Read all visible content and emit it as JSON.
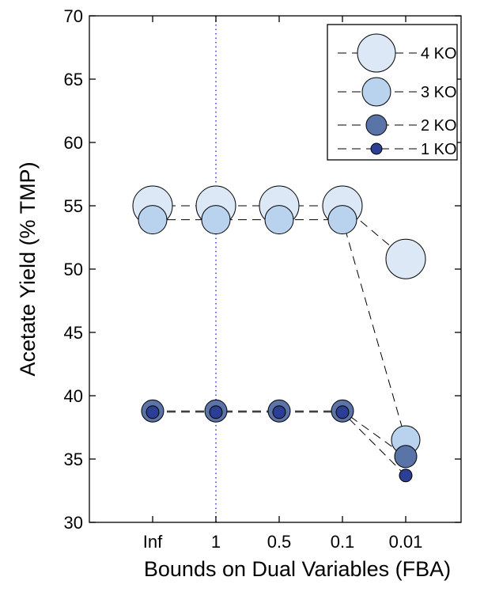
{
  "chart_data": {
    "type": "scatter",
    "xlabel": "Bounds on Dual Variables (FBA)",
    "ylabel": "Acetate Yield (% TMP)",
    "categories": [
      "Inf",
      "1",
      "0.5",
      "0.1",
      "0.01"
    ],
    "ylim": [
      30,
      70
    ],
    "yticks": [
      30,
      35,
      40,
      45,
      50,
      55,
      60,
      65,
      70
    ],
    "reference_line_category": "1",
    "legend_position": "top-right",
    "series": [
      {
        "name": "4 KO",
        "values": [
          55.0,
          55.0,
          55.0,
          55.0,
          50.8
        ],
        "color": "#dde8f6"
      },
      {
        "name": "3 KO",
        "values": [
          53.9,
          53.9,
          53.9,
          53.9,
          36.5
        ],
        "color": "#b9d3ee"
      },
      {
        "name": "2 KO",
        "values": [
          38.8,
          38.8,
          38.8,
          38.8,
          35.2
        ],
        "color": "#5a74a8"
      },
      {
        "name": "1 KO",
        "values": [
          38.7,
          38.7,
          38.7,
          38.7,
          33.7
        ],
        "color": "#2b3f96"
      }
    ]
  }
}
